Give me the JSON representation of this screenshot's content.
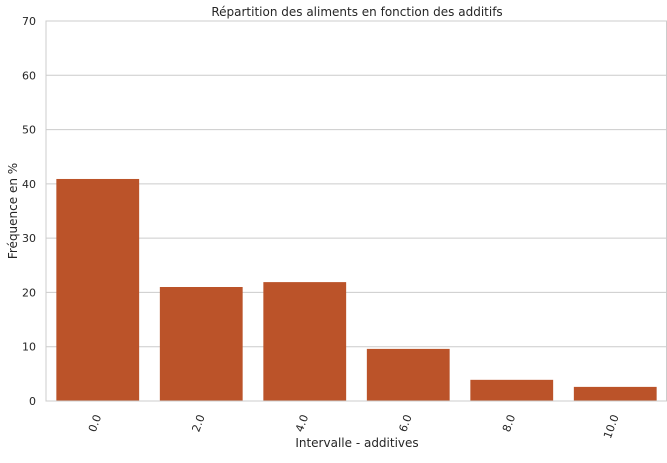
{
  "chart_data": {
    "type": "bar",
    "title": "Répartition des aliments en fonction des additifs",
    "xlabel": "Intervalle - additives",
    "ylabel": "Fréquence en %",
    "categories": [
      "0.0",
      "2.0",
      "4.0",
      "6.0",
      "8.0",
      "10.0"
    ],
    "values": [
      40.9,
      21.0,
      21.9,
      9.6,
      3.9,
      2.6
    ],
    "ylim": [
      0,
      70
    ],
    "yticks": [
      0,
      10,
      20,
      30,
      40,
      50,
      60,
      70
    ],
    "grid": "horizontal",
    "x_tick_rotation_deg": 70,
    "bar_color": "#bb5329",
    "grid_color": "#cccccc",
    "spine_color": "#cccccc"
  }
}
